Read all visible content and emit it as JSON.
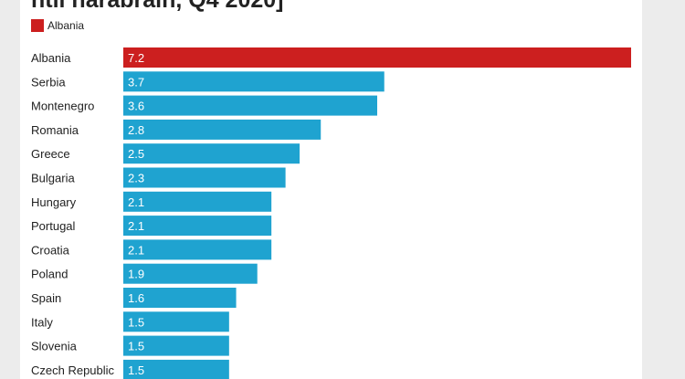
{
  "title": "ntil harabrain, Q4 2020]",
  "legend": {
    "label": "Albania",
    "color": "#cc1f1f"
  },
  "colors": {
    "highlight": "#cc1f1f",
    "default": "#1fa3d0"
  },
  "chart_data": {
    "type": "bar",
    "orientation": "horizontal",
    "categories": [
      "Albania",
      "Serbia",
      "Montenegro",
      "Romania",
      "Greece",
      "Bulgaria",
      "Hungary",
      "Portugal",
      "Croatia",
      "Poland",
      "Spain",
      "Italy",
      "Slovenia",
      "Czech Republic"
    ],
    "values": [
      7.2,
      3.7,
      3.6,
      2.8,
      2.5,
      2.3,
      2.1,
      2.1,
      2.1,
      1.9,
      1.6,
      1.5,
      1.5,
      1.5
    ],
    "highlight": "Albania",
    "xlim": [
      0,
      7.2
    ],
    "grid": false
  }
}
